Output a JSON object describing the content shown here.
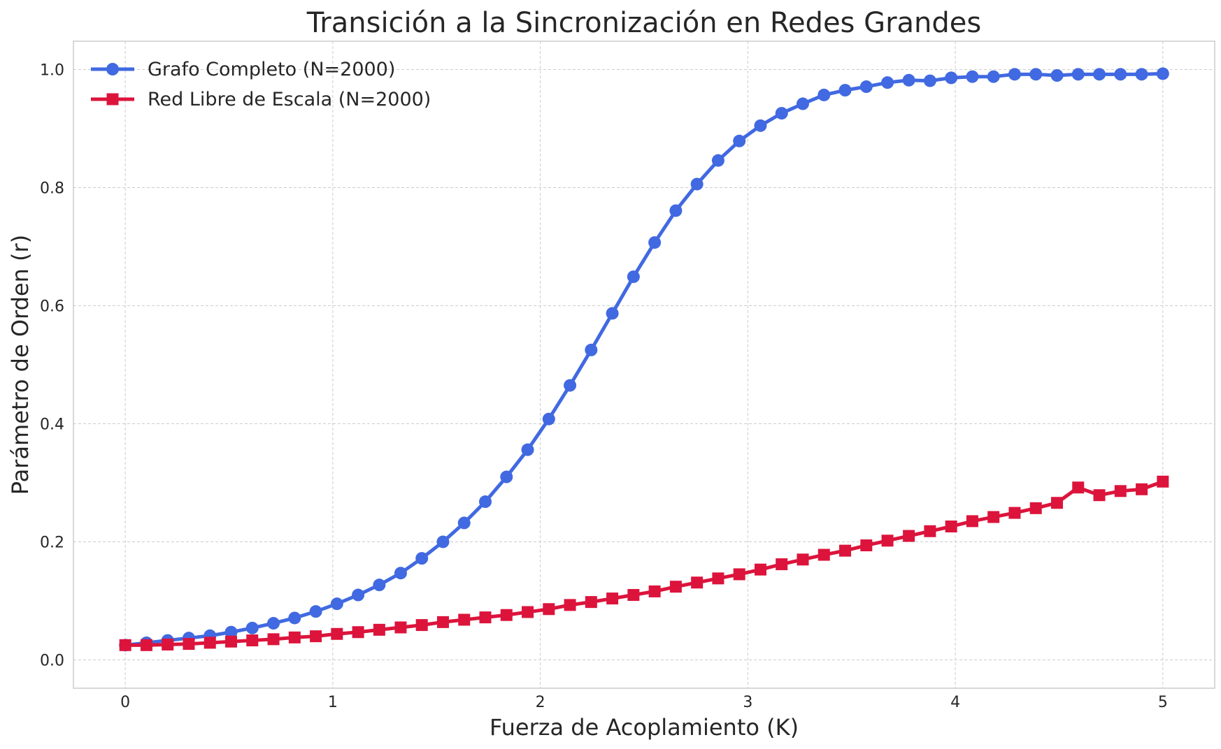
{
  "chart_data": {
    "type": "line",
    "title": "Transición a la Sincronización en Redes Grandes",
    "xlabel": "Fuerza de Acoplamiento (K)",
    "ylabel": "Parámetro de Orden (r)",
    "xlim": [
      -0.25,
      5.25
    ],
    "ylim": [
      -0.048,
      1.048
    ],
    "xticks": [
      0,
      1,
      2,
      3,
      4,
      5
    ],
    "xtick_labels": [
      "0",
      "1",
      "2",
      "3",
      "4",
      "5"
    ],
    "yticks": [
      0.0,
      0.2,
      0.4,
      0.6,
      0.8,
      1.0
    ],
    "ytick_labels": [
      "0.0",
      "0.2",
      "0.4",
      "0.6",
      "0.8",
      "1.0"
    ],
    "grid": true,
    "legend_position": "top-left",
    "x": [
      0.0,
      0.102,
      0.204,
      0.306,
      0.408,
      0.51,
      0.612,
      0.714,
      0.816,
      0.918,
      1.02,
      1.122,
      1.224,
      1.327,
      1.429,
      1.531,
      1.633,
      1.735,
      1.837,
      1.939,
      2.041,
      2.143,
      2.245,
      2.347,
      2.449,
      2.551,
      2.653,
      2.755,
      2.857,
      2.959,
      3.061,
      3.163,
      3.265,
      3.367,
      3.469,
      3.571,
      3.673,
      3.776,
      3.878,
      3.98,
      4.082,
      4.184,
      4.286,
      4.388,
      4.49,
      4.592,
      4.694,
      4.796,
      4.898,
      5.0
    ],
    "series": [
      {
        "name": "Grafo Completo (N=2000)",
        "color": "#4169e1",
        "marker": "circle",
        "values": [
          0.025,
          0.029,
          0.033,
          0.037,
          0.041,
          0.047,
          0.054,
          0.062,
          0.071,
          0.082,
          0.095,
          0.11,
          0.127,
          0.147,
          0.172,
          0.2,
          0.232,
          0.268,
          0.31,
          0.356,
          0.408,
          0.465,
          0.525,
          0.587,
          0.649,
          0.707,
          0.761,
          0.806,
          0.846,
          0.879,
          0.905,
          0.926,
          0.942,
          0.957,
          0.965,
          0.971,
          0.978,
          0.982,
          0.981,
          0.986,
          0.988,
          0.988,
          0.992,
          0.992,
          0.99,
          0.992,
          0.992,
          0.992,
          0.992,
          0.993
        ]
      },
      {
        "name": "Red Libre de Escala (N=2000)",
        "color": "#dc143c",
        "marker": "square",
        "values": [
          0.025,
          0.025,
          0.026,
          0.027,
          0.029,
          0.031,
          0.033,
          0.035,
          0.038,
          0.04,
          0.044,
          0.047,
          0.051,
          0.055,
          0.059,
          0.064,
          0.068,
          0.072,
          0.076,
          0.081,
          0.086,
          0.093,
          0.098,
          0.104,
          0.11,
          0.116,
          0.124,
          0.131,
          0.138,
          0.145,
          0.153,
          0.162,
          0.17,
          0.178,
          0.185,
          0.194,
          0.202,
          0.21,
          0.218,
          0.226,
          0.235,
          0.242,
          0.249,
          0.257,
          0.266,
          0.292,
          0.279,
          0.286,
          0.289,
          0.302
        ]
      }
    ]
  }
}
